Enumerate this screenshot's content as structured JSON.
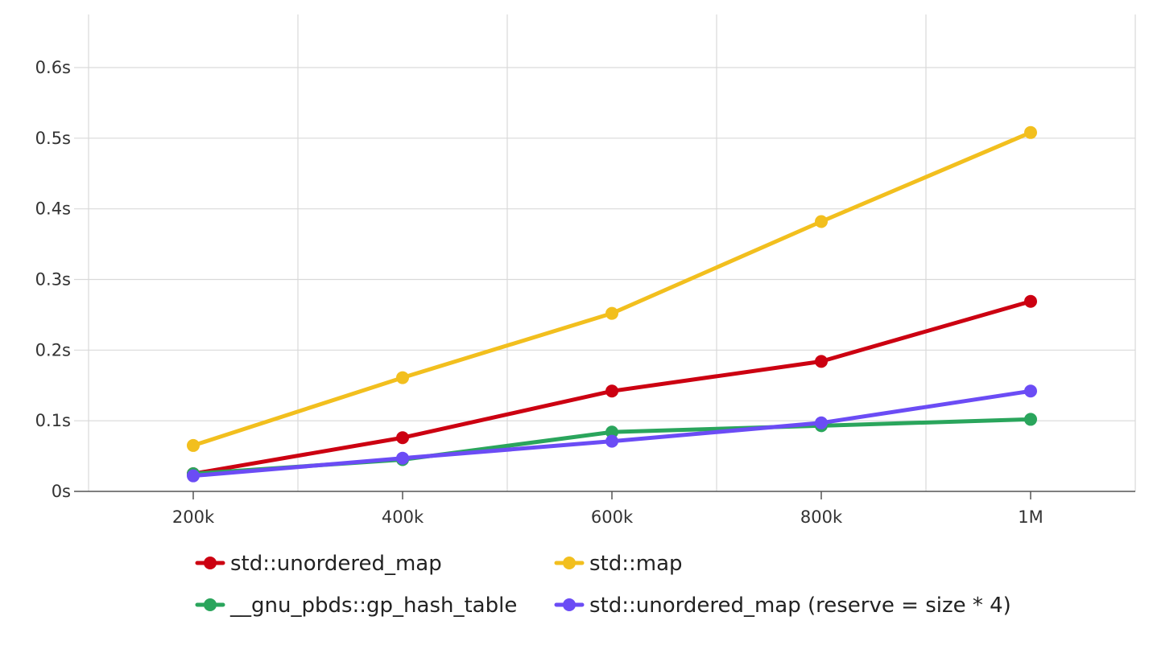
{
  "chart_data": {
    "type": "line",
    "x": [
      "200k",
      "400k",
      "600k",
      "800k",
      "1M"
    ],
    "x_axis": {
      "ticks": [
        "200k",
        "400k",
        "600k",
        "800k",
        "1M"
      ]
    },
    "y_axis": {
      "ticks": [
        "0s",
        "0.1s",
        "0.2s",
        "0.3s",
        "0.4s",
        "0.5s",
        "0.6s"
      ],
      "ylim": [
        0,
        0.6
      ]
    },
    "grid": true,
    "legend_position": "bottom",
    "series": [
      {
        "name": "std::unordered_map",
        "color": "#cc0011",
        "values": [
          0.025,
          0.076,
          0.142,
          0.184,
          0.269
        ]
      },
      {
        "name": "std::map",
        "color": "#f2bf1e",
        "values": [
          0.065,
          0.161,
          0.252,
          0.382,
          0.508
        ]
      },
      {
        "name": "__gnu_pbds::gp_hash_table",
        "color": "#2aa55c",
        "values": [
          0.025,
          0.045,
          0.084,
          0.093,
          0.102
        ]
      },
      {
        "name": "std::unordered_map (reserve = size * 4)",
        "color": "#6b4cf5",
        "values": [
          0.022,
          0.047,
          0.071,
          0.097,
          0.142
        ]
      }
    ]
  }
}
